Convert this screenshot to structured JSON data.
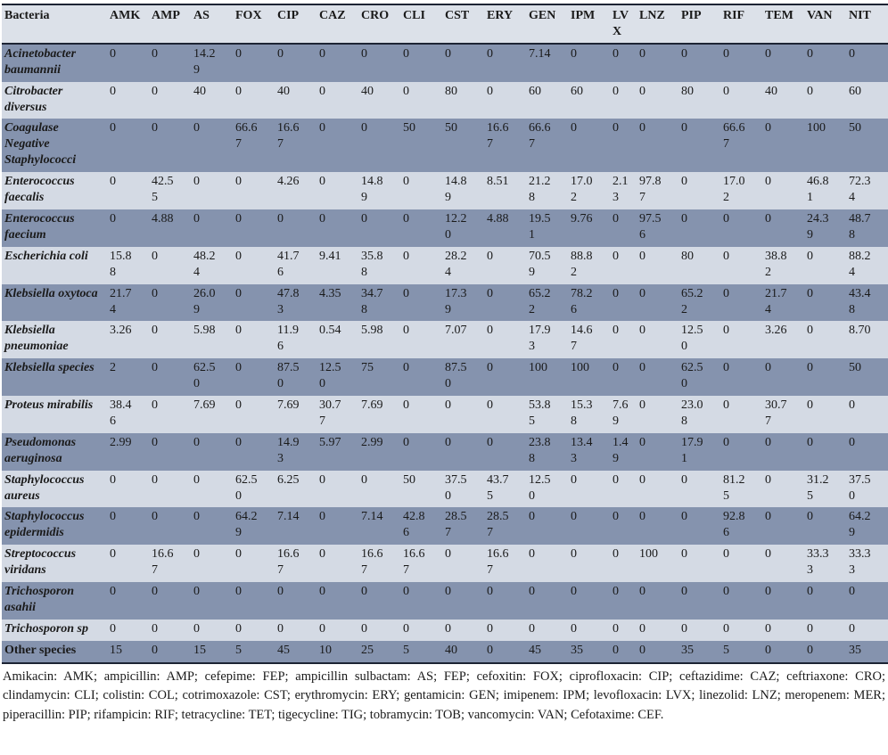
{
  "table": {
    "columns": [
      "Bacteria",
      "AMK",
      "AMP",
      "AS",
      "FOX",
      "CIP",
      "CAZ",
      "CRO",
      "CLI",
      "CST",
      "ERY",
      "GEN",
      "IPM",
      "LVX",
      "LNZ",
      "PIP",
      "RIF",
      "TEM",
      "VAN",
      "NIT"
    ],
    "rows": [
      {
        "bacteria": "Acinetobacter baumannii",
        "italic": true,
        "values": [
          "0",
          "0",
          "14.29",
          "0",
          "0",
          "0",
          "0",
          "0",
          "0",
          "0",
          "7.14",
          "0",
          "0",
          "0",
          "0",
          "0",
          "0",
          "0",
          "0"
        ]
      },
      {
        "bacteria": "Citrobacter diversus",
        "italic": true,
        "values": [
          "0",
          "0",
          "40",
          "0",
          "40",
          "0",
          "40",
          "0",
          "80",
          "0",
          "60",
          "60",
          "0",
          "0",
          "80",
          "0",
          "40",
          "0",
          "60"
        ]
      },
      {
        "bacteria": "Coagulase Negative Staphylococci",
        "italic": true,
        "values": [
          "0",
          "0",
          "0",
          "66.67",
          "16.67",
          "0",
          "0",
          "50",
          "50",
          "16.67",
          "66.67",
          "0",
          "0",
          "0",
          "0",
          "66.67",
          "0",
          "100",
          "50"
        ]
      },
      {
        "bacteria": "Enterococcus faecalis",
        "italic": true,
        "values": [
          "0",
          "42.55",
          "0",
          "0",
          "4.26",
          "0",
          "14.89",
          "0",
          "14.89",
          "8.51",
          "21.28",
          "17.02",
          "2.13",
          "97.87",
          "0",
          "17.02",
          "0",
          "46.81",
          "72.34"
        ]
      },
      {
        "bacteria": "Enterococcus faecium",
        "italic": true,
        "values": [
          "0",
          "4.88",
          "0",
          "0",
          "0",
          "0",
          "0",
          "0",
          "12.20",
          "4.88",
          "19.51",
          "9.76",
          "0",
          "97.56",
          "0",
          "0",
          "0",
          "24.39",
          "48.78"
        ]
      },
      {
        "bacteria": "Escherichia coli",
        "italic": true,
        "values": [
          "15.88",
          "0",
          "48.24",
          "0",
          "41.76",
          "9.41",
          "35.88",
          "0",
          "28.24",
          "0",
          "70.59",
          "88.82",
          "0",
          "0",
          "80",
          "0",
          "38.82",
          "0",
          "88.24"
        ]
      },
      {
        "bacteria": "Klebsiella oxytoca",
        "italic": true,
        "values": [
          "21.74",
          "0",
          "26.09",
          "0",
          "47.83",
          "4.35",
          "34.78",
          "0",
          "17.39",
          "0",
          "65.22",
          "78.26",
          "0",
          "0",
          "65.22",
          "0",
          "21.74",
          "0",
          "43.48"
        ]
      },
      {
        "bacteria": "Klebsiella pneumoniae",
        "italic": true,
        "values": [
          "3.26",
          "0",
          "5.98",
          "0",
          "11.96",
          "0.54",
          "5.98",
          "0",
          "7.07",
          "0",
          "17.93",
          "14.67",
          "0",
          "0",
          "12.50",
          "0",
          "3.26",
          "0",
          "8.70"
        ]
      },
      {
        "bacteria": "Klebsiella species",
        "italic": true,
        "values": [
          "2",
          "0",
          "62.50",
          "0",
          "87.50",
          "12.50",
          "75",
          "0",
          "87.50",
          "0",
          "100",
          "100",
          "0",
          "0",
          "62.50",
          "0",
          "0",
          "0",
          "50"
        ]
      },
      {
        "bacteria": "Proteus mirabilis",
        "italic": true,
        "values": [
          "38.46",
          "0",
          "7.69",
          "0",
          "7.69",
          "30.77",
          "7.69",
          "0",
          "0",
          "0",
          "53.85",
          "15.38",
          "7.69",
          "0",
          "23.08",
          "0",
          "30.77",
          "0",
          "0"
        ]
      },
      {
        "bacteria": "Pseudomonas aeruginosa",
        "italic": true,
        "values": [
          "2.99",
          "0",
          "0",
          "0",
          "14.93",
          "5.97",
          "2.99",
          "0",
          "0",
          "0",
          "23.88",
          "13.43",
          "1.49",
          "0",
          "17.91",
          "0",
          "0",
          "0",
          "0"
        ]
      },
      {
        "bacteria": "Staphylococcus aureus",
        "italic": true,
        "values": [
          "0",
          "0",
          "0",
          "62.50",
          "6.25",
          "0",
          "0",
          "50",
          "37.50",
          "43.75",
          "12.50",
          "0",
          "0",
          "0",
          "0",
          "81.25",
          "0",
          "31.25",
          "37.50"
        ]
      },
      {
        "bacteria": "Staphylococcus epidermidis",
        "italic": true,
        "values": [
          "0",
          "0",
          "0",
          "64.29",
          "7.14",
          "0",
          "7.14",
          "42.86",
          "28.57",
          "28.57",
          "0",
          "0",
          "0",
          "0",
          "0",
          "92.86",
          "0",
          "0",
          "64.29"
        ]
      },
      {
        "bacteria": "Streptococcus viridans",
        "italic": true,
        "values": [
          "0",
          "16.67",
          "0",
          "0",
          "16.67",
          "0",
          "16.67",
          "16.67",
          "0",
          "16.67",
          "0",
          "0",
          "0",
          "100",
          "0",
          "0",
          "0",
          "33.33",
          "33.33"
        ]
      },
      {
        "bacteria": "Trichosporon asahii",
        "italic": true,
        "values": [
          "0",
          "0",
          "0",
          "0",
          "0",
          "0",
          "0",
          "0",
          "0",
          "0",
          "0",
          "0",
          "0",
          "0",
          "0",
          "0",
          "0",
          "0",
          "0"
        ]
      },
      {
        "bacteria": "Trichosporon sp",
        "italic": true,
        "values": [
          "0",
          "0",
          "0",
          "0",
          "0",
          "0",
          "0",
          "0",
          "0",
          "0",
          "0",
          "0",
          "0",
          "0",
          "0",
          "0",
          "0",
          "0",
          "0"
        ]
      },
      {
        "bacteria": "Other species",
        "italic": false,
        "values": [
          "15",
          "0",
          "15",
          "5",
          "45",
          "10",
          "25",
          "5",
          "40",
          "0",
          "45",
          "35",
          "0",
          "0",
          "35",
          "5",
          "0",
          "0",
          "35"
        ]
      }
    ]
  },
  "footnote": "Amikacin: AMK; ampicillin: AMP; cefepime: FEP; ampicillin sulbactam: AS; FEP; cefoxitin: FOX; ciprofloxacin: CIP; ceftazidime: CAZ; ceftriaxone: CRO; clindamycin: CLI; colistin: COL; cotrimoxazole: CST; erythromycin: ERY; gentamicin: GEN; imipenem: IPM; levofloxacin: LVX; linezolid: LNZ; meropenem: MER; piperacillin: PIP; rifampicin: RIF; tetracycline: TET; tigecycline: TIG; tobramycin: TOB; vancomycin: VAN; Cefotaxime: CEF.",
  "layout_colors": {
    "band_dark": "#8593ae",
    "band_light": "#d4dae4",
    "header_bg": "#dce1e9",
    "border": "#1d2434"
  }
}
